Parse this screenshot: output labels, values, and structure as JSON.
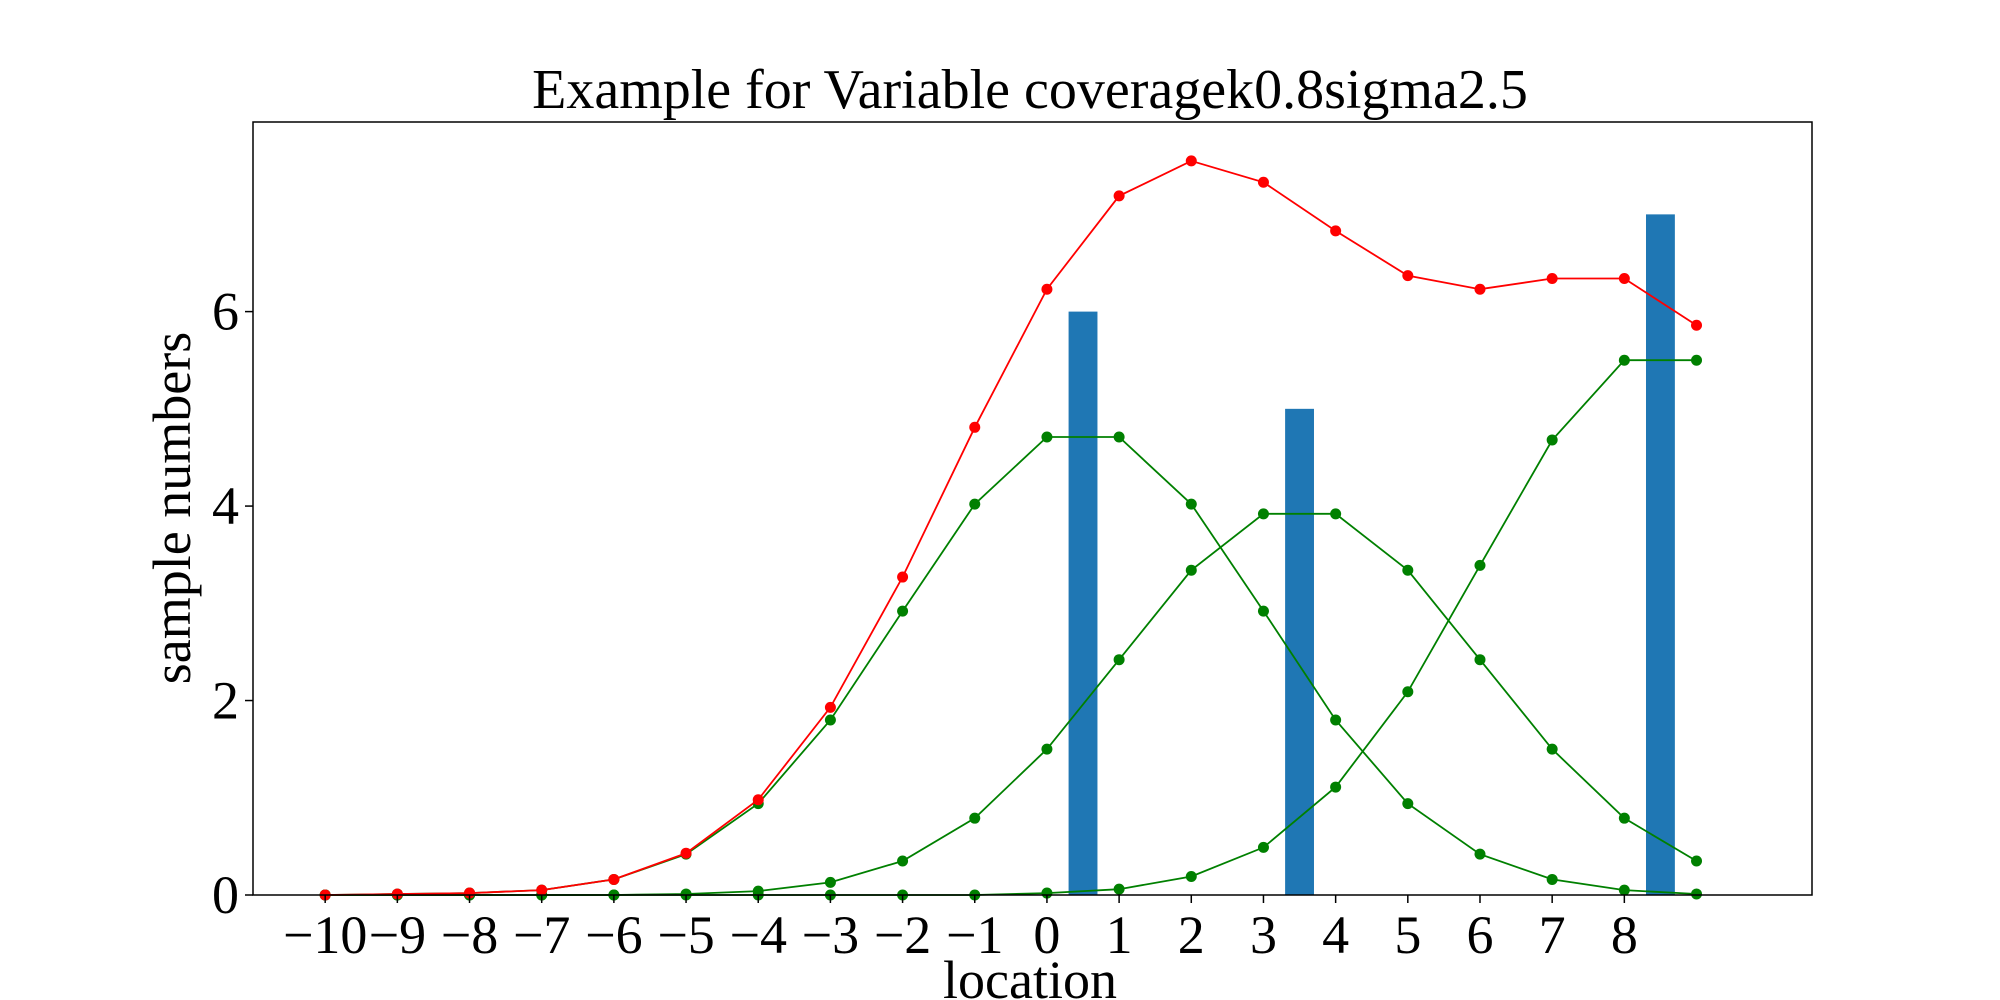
{
  "chart_data": {
    "type": "line",
    "title": "Example for Variable coveragek0.8sigma2.5",
    "xlabel": "location",
    "ylabel": "sample numbers",
    "x_ticks": [
      -10,
      -9,
      -8,
      -7,
      -6,
      -5,
      -4,
      -3,
      -2,
      -1,
      0,
      1,
      2,
      3,
      4,
      5,
      6,
      7,
      8
    ],
    "x_tick_labels": [
      "−10",
      "−9",
      "−8",
      "−7",
      "−6",
      "−5",
      "−4",
      "−3",
      "−2",
      "−1",
      "0",
      "1",
      "2",
      "3",
      "4",
      "5",
      "6",
      "7",
      "8"
    ],
    "y_ticks": [
      0,
      2,
      4,
      6
    ],
    "y_tick_labels": [
      "0",
      "2",
      "4",
      "6"
    ],
    "xlim": [
      -11.0,
      10.6
    ],
    "ylim": [
      0,
      7.95
    ],
    "grid": false,
    "legend": "none",
    "x": [
      -10,
      -9,
      -8,
      -7,
      -6,
      -5,
      -4,
      -3,
      -2,
      -1,
      0,
      1,
      2,
      3,
      4,
      5,
      6,
      7,
      8,
      9
    ],
    "bars": {
      "color": "#1f77b4",
      "width": 0.4,
      "x": [
        0.5,
        3.5,
        8.5
      ],
      "values": [
        6,
        5,
        7
      ]
    },
    "series": [
      {
        "color": "#008000",
        "values": [
          0.0,
          0.0,
          0.0,
          0.0,
          0.0,
          0.0,
          0.0,
          0.0,
          0.0,
          0.0,
          0.02,
          0.06,
          0.19,
          0.49,
          1.11,
          2.09,
          3.39,
          4.68,
          5.5,
          5.5
        ]
      },
      {
        "color": "#008000",
        "values": [
          0.0,
          0.0,
          0.0,
          0.0,
          0.0,
          0.01,
          0.04,
          0.13,
          0.35,
          0.79,
          1.5,
          2.42,
          3.34,
          3.92,
          3.92,
          3.34,
          2.42,
          1.5,
          0.79,
          0.35
        ]
      },
      {
        "color": "#008000",
        "values": [
          0.0,
          0.01,
          0.02,
          0.05,
          0.16,
          0.42,
          0.94,
          1.8,
          2.92,
          4.02,
          4.71,
          4.71,
          4.02,
          2.92,
          1.8,
          0.94,
          0.42,
          0.16,
          0.05,
          0.01
        ]
      },
      {
        "color": "#ff0000",
        "values": [
          0.0,
          0.01,
          0.02,
          0.05,
          0.16,
          0.43,
          0.98,
          1.93,
          3.27,
          4.81,
          6.23,
          7.19,
          7.55,
          7.33,
          6.83,
          6.37,
          6.23,
          6.34,
          6.34,
          5.86
        ]
      }
    ]
  }
}
